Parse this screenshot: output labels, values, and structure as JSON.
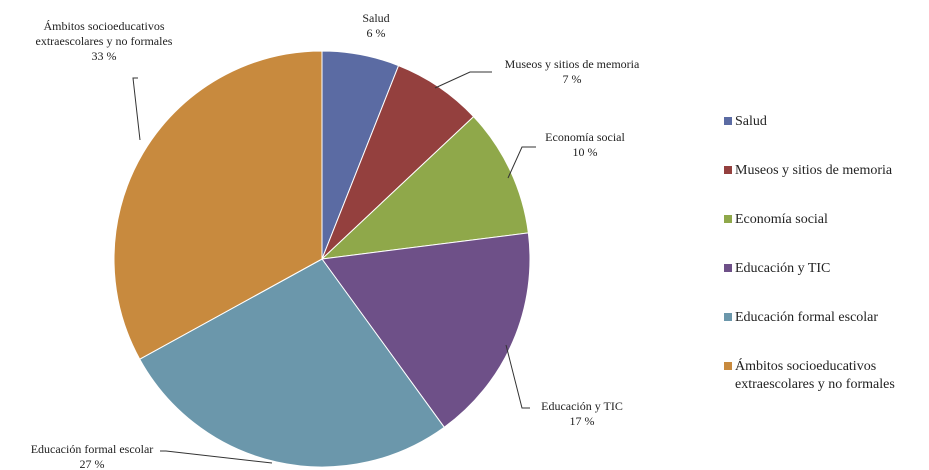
{
  "chart_data": {
    "type": "pie",
    "title": "",
    "slices": [
      {
        "name": "Salud",
        "name_lines": [
          "Salud"
        ],
        "percent": 6,
        "label": "6 %",
        "color": "#5b6ba3"
      },
      {
        "name": "Museos y sitios de memoria",
        "name_lines": [
          "Museos y sitios de memoria"
        ],
        "percent": 7,
        "label": "7 %",
        "color": "#94403e"
      },
      {
        "name": "Economía social",
        "name_lines": [
          "Economía social"
        ],
        "percent": 10,
        "label": "10 %",
        "color": "#8fa84a"
      },
      {
        "name": "Educación y TIC",
        "name_lines": [
          "Educación y TIC"
        ],
        "percent": 17,
        "label": "17 %",
        "color": "#6e5088"
      },
      {
        "name": "Educación formal escolar",
        "name_lines": [
          "Educación formal escolar"
        ],
        "percent": 27,
        "label": "27 %",
        "color": "#6b97ab"
      },
      {
        "name": "Ámbitos socioeducativos extraescolares y no formales",
        "name_lines": [
          "Ámbitos socioeducativos",
          "extraescolares y no formales"
        ],
        "percent": 33,
        "label": "33 %",
        "color": "#c88a3e"
      }
    ],
    "legend": {
      "placement": "right",
      "entries": [
        [
          "Salud"
        ],
        [
          "Museos y sitios de memoria"
        ],
        [
          "Economía social"
        ],
        [
          "Educación y TIC"
        ],
        [
          "Educación formal escolar"
        ],
        [
          "Ámbitos socioeducativos",
          "extraescolares y no formales"
        ]
      ]
    }
  }
}
